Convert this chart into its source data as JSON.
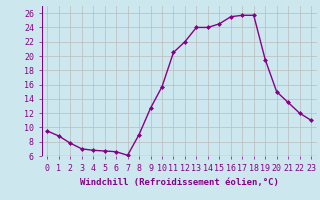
{
  "hours": [
    0,
    1,
    2,
    3,
    4,
    5,
    6,
    7,
    8,
    9,
    10,
    11,
    12,
    13,
    14,
    15,
    16,
    17,
    18,
    19,
    20,
    21,
    22,
    23
  ],
  "values": [
    9.5,
    8.8,
    7.8,
    7.0,
    6.8,
    6.7,
    6.6,
    6.1,
    9.0,
    12.7,
    15.7,
    20.5,
    22.0,
    24.0,
    24.0,
    24.5,
    25.5,
    25.7,
    25.7,
    19.5,
    15.0,
    13.5,
    12.0,
    11.0
  ],
  "line_color": "#880088",
  "marker": "D",
  "marker_size": 2.0,
  "bg_color": "#cce8ee",
  "grid_color": "#bbbbbb",
  "xlabel": "Windchill (Refroidissement éolien,°C)",
  "xlabel_fontsize": 6.5,
  "tick_fontsize": 6.0,
  "ylim": [
    6,
    27
  ],
  "yticks": [
    6,
    8,
    10,
    12,
    14,
    16,
    18,
    20,
    22,
    24,
    26
  ],
  "xlim": [
    -0.5,
    23.5
  ],
  "linewidth": 1.0
}
